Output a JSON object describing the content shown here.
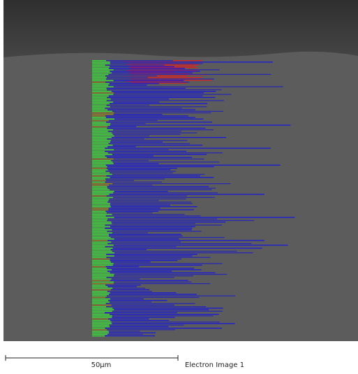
{
  "scale_bar": {
    "label": "50µm"
  },
  "image_label": "Electron Image 1"
}
